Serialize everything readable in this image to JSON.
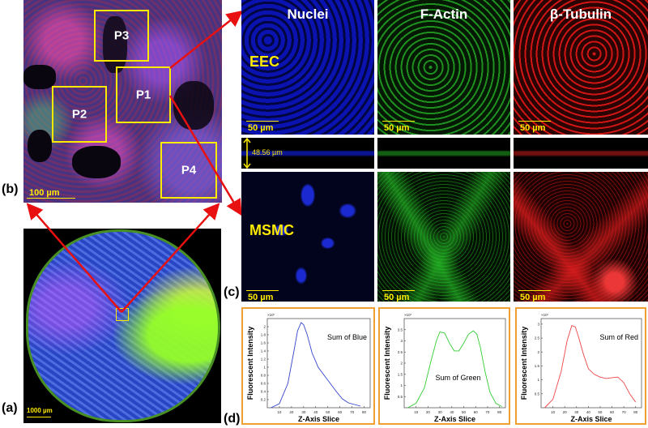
{
  "panel_labels": {
    "a": "(a)",
    "b": "(b)",
    "c": "(c)",
    "d": "(d)"
  },
  "columns": {
    "nuclei": "Nuclei",
    "factin": "F-Actin",
    "tubulin": "β-Tubulin"
  },
  "rows": {
    "eec": "EEC",
    "msmc": "MSMC"
  },
  "regions": [
    "P1",
    "P2",
    "P3",
    "P4"
  ],
  "scales": {
    "overview": "1000 µm",
    "zoom": "100 µm",
    "cell": "50 µm",
    "depth": "48.56 µm"
  },
  "colors": {
    "nuclei": "#1a2cff",
    "factin": "#22cc22",
    "tubulin": "#ff2020",
    "accent": "#ffeb00",
    "arrow": "#e81010",
    "frame": "#f0a030"
  },
  "chart_data": [
    {
      "type": "line",
      "title": "Sum of  Blue",
      "xlabel": "Z-Axis  Slice",
      "ylabel": "Fluorescent Intensity",
      "exponent": "×10⁷",
      "xlim": [
        0,
        85
      ],
      "ylim": [
        0,
        2.2
      ],
      "xticks": [
        10,
        20,
        30,
        40,
        50,
        60,
        70,
        80
      ],
      "yticks": [
        0.2,
        0.4,
        0.6,
        0.8,
        1,
        1.2,
        1.4,
        1.6,
        1.8,
        2
      ],
      "color": "#3344cc",
      "x": [
        3,
        10,
        17,
        22,
        25,
        28,
        30,
        33,
        37,
        42,
        47,
        52,
        57,
        62,
        67,
        72,
        77
      ],
      "y": [
        0.0,
        0.1,
        0.6,
        1.4,
        1.9,
        2.1,
        2.05,
        1.8,
        1.35,
        1.0,
        0.8,
        0.6,
        0.4,
        0.22,
        0.12,
        0.08,
        0.04
      ]
    },
    {
      "type": "line",
      "title": "Sum of  Green",
      "xlabel": "Z-Axis  Slice",
      "ylabel": "Fluorescent Intensity",
      "exponent": "×10⁷",
      "xlim": [
        0,
        85
      ],
      "ylim": [
        0,
        4
      ],
      "xticks": [
        10,
        20,
        30,
        40,
        50,
        60,
        70,
        80
      ],
      "yticks": [
        0.5,
        1,
        1.5,
        2,
        2.5,
        3,
        3.5
      ],
      "color": "#33cc33",
      "x": [
        3,
        10,
        17,
        22,
        27,
        30,
        34,
        38,
        42,
        46,
        50,
        54,
        58,
        61,
        64,
        68,
        72,
        77,
        82
      ],
      "y": [
        0.0,
        0.2,
        0.9,
        2.0,
        3.0,
        3.4,
        3.35,
        2.9,
        2.55,
        2.55,
        2.9,
        3.3,
        3.45,
        3.3,
        2.7,
        1.6,
        0.7,
        0.2,
        0.05
      ]
    },
    {
      "type": "line",
      "title": "Sum of  Red",
      "xlabel": "Z-Axis  Slice",
      "ylabel": "Fluorescent Intensity",
      "exponent": "×10⁷",
      "xlim": [
        0,
        85
      ],
      "ylim": [
        0,
        3.2
      ],
      "xticks": [
        10,
        20,
        30,
        40,
        50,
        60,
        70,
        80
      ],
      "yticks": [
        0.5,
        1,
        1.5,
        2,
        2.5,
        3
      ],
      "color": "#ee4444",
      "x": [
        3,
        10,
        17,
        22,
        26,
        29,
        32,
        36,
        40,
        45,
        50,
        55,
        60,
        65,
        70,
        75,
        80
      ],
      "y": [
        0.0,
        0.3,
        1.3,
        2.4,
        2.95,
        2.9,
        2.5,
        1.9,
        1.4,
        1.2,
        1.1,
        1.05,
        1.08,
        1.1,
        0.9,
        0.5,
        0.2
      ]
    }
  ]
}
